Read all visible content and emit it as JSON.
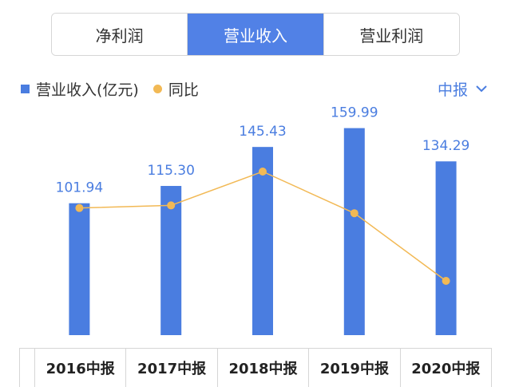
{
  "tabs": [
    "净利润",
    "营业收入",
    "营业利润"
  ],
  "active_tab": 1,
  "legend": {
    "bar": "营业收入(亿元)",
    "line": "同比"
  },
  "period_selector": {
    "label": "中报"
  },
  "colors": {
    "bar": "#4a7de0",
    "line": "#f2b955",
    "tab_active": "#5181e6"
  },
  "chart_data": {
    "type": "bar",
    "categories": [
      "2016中报",
      "2017中报",
      "2018中报",
      "2019中报",
      "2020中报"
    ],
    "series": [
      {
        "name": "营业收入(亿元)",
        "type": "bar",
        "values": [
          101.94,
          115.3,
          145.43,
          159.99,
          134.29
        ]
      }
    ],
    "yoy_line": {
      "name": "同比",
      "type": "line",
      "values": [
        0.12,
        0.13,
        0.26,
        0.1,
        -0.16
      ]
    },
    "ylim": [
      0,
      185
    ],
    "grid": false
  }
}
